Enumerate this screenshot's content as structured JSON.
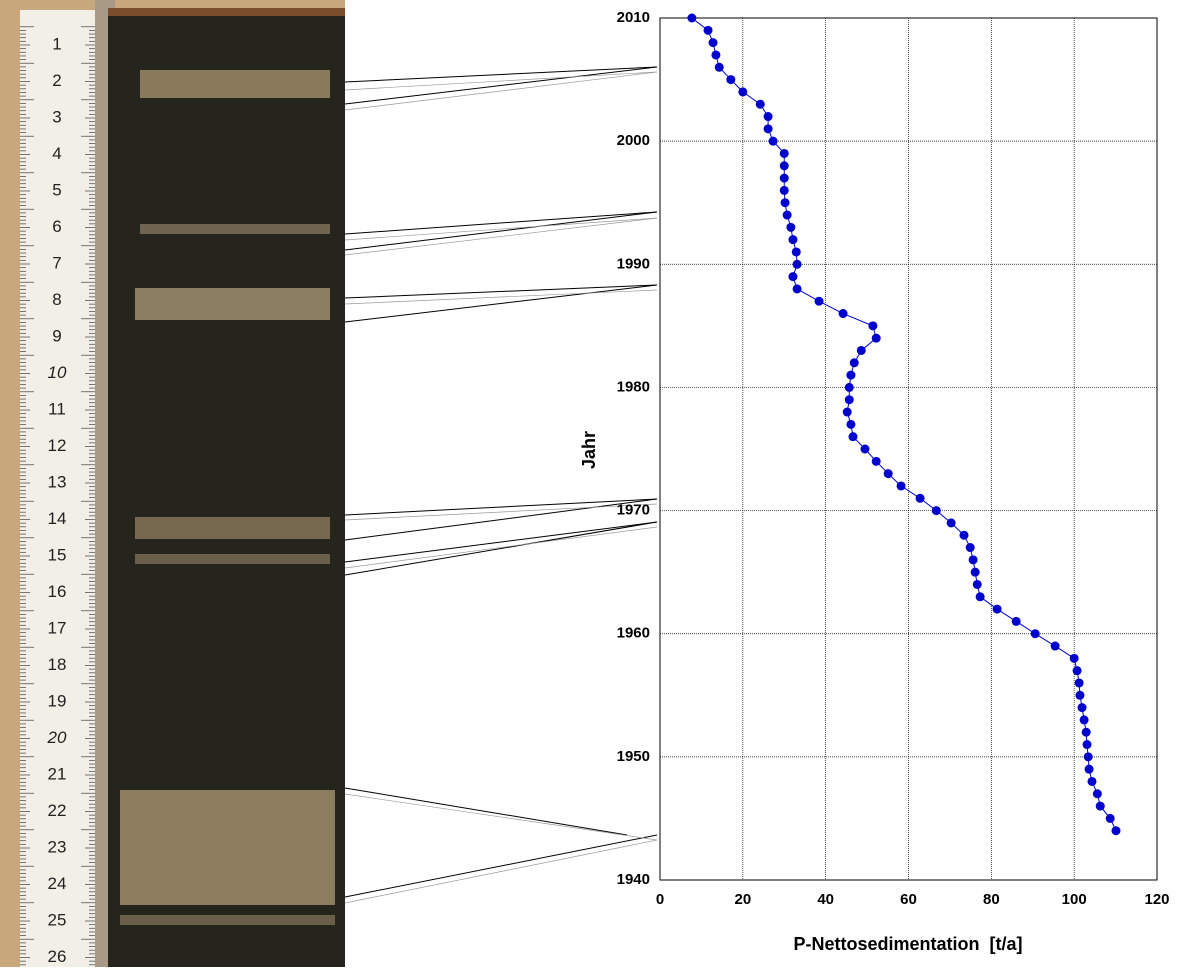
{
  "ruler": {
    "labels": [
      "1",
      "2",
      "3",
      "4",
      "5",
      "6",
      "7",
      "8",
      "9",
      "10",
      "11",
      "12",
      "13",
      "14",
      "15",
      "16",
      "17",
      "18",
      "19",
      "20",
      "21",
      "22",
      "23",
      "24",
      "25",
      "26"
    ]
  },
  "chart_data": {
    "type": "line",
    "orientation": "horizontal",
    "markers": true,
    "color": "#0000cc",
    "grid": true,
    "xlabel": "P-Nettosedimentation  [t/a]",
    "ylabel": "Jahr",
    "xlim": [
      0,
      120
    ],
    "xticks": [
      0,
      20,
      40,
      60,
      80,
      100,
      120
    ],
    "ylim": [
      1940,
      2010
    ],
    "yticks": [
      1940,
      1950,
      1960,
      1970,
      1980,
      1990,
      2000,
      2010
    ],
    "years": [
      2010,
      2009,
      2008,
      2007,
      2006,
      2005,
      2004,
      2003,
      2002,
      2001,
      2000,
      1999,
      1998,
      1997,
      1996,
      1995,
      1994,
      1993,
      1992,
      1991,
      1990,
      1989,
      1988,
      1987,
      1986,
      1985,
      1984,
      1983,
      1982,
      1981,
      1980,
      1979,
      1978,
      1977,
      1976,
      1975,
      1974,
      1973,
      1972,
      1971,
      1970,
      1969,
      1968,
      1967,
      1966,
      1965,
      1964,
      1963,
      1962,
      1961,
      1960,
      1959,
      1958,
      1957,
      1956,
      1955,
      1954,
      1953,
      1952,
      1951,
      1950,
      1949,
      1948,
      1947,
      1946,
      1945,
      1944
    ],
    "values": [
      7.7,
      11.6,
      12.8,
      13.5,
      14.3,
      17.1,
      20,
      24.2,
      26.1,
      26.1,
      27.3,
      30,
      30,
      30,
      30,
      30.2,
      30.7,
      31.6,
      32.1,
      32.9,
      33.1,
      32.1,
      33.1,
      38.4,
      44.2,
      51.4,
      52.2,
      48.6,
      46.9,
      46.1,
      45.7,
      45.7,
      45.2,
      46.1,
      46.6,
      49.5,
      52.2,
      55.1,
      58.2,
      62.8,
      66.7,
      70.3,
      73.4,
      74.9,
      75.6,
      76.1,
      76.6,
      77.3,
      81.4,
      86,
      90.6,
      95.4,
      100,
      100.7,
      101.2,
      101.4,
      101.9,
      102.4,
      102.9,
      103.1,
      103.4,
      103.6,
      104.3,
      105.6,
      106.3,
      108.7,
      110.1
    ]
  }
}
